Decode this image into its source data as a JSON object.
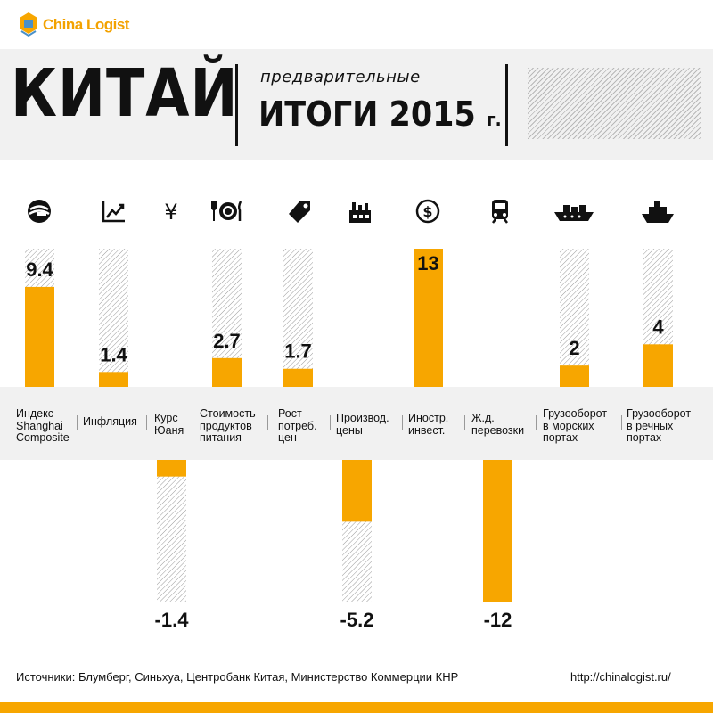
{
  "brand": {
    "name": "China Logist",
    "color": "#f7a600"
  },
  "header": {
    "title": "КИТАЙ",
    "subtitle": "предварительные",
    "title2": "ИТОГИ 2015",
    "title2_suffix": "г."
  },
  "chart_data": {
    "type": "bar",
    "categories": [
      {
        "lines": [
          "Индекс",
          "Shanghai",
          "Composite"
        ],
        "icon": "shanghai-exchange-icon"
      },
      {
        "lines": [
          "Инфляция"
        ],
        "icon": "chart-trend-icon"
      },
      {
        "lines": [
          "Курс",
          "Юаня"
        ],
        "icon": "yuan-icon"
      },
      {
        "lines": [
          "Стоимость",
          "продуктов",
          "питания"
        ],
        "icon": "food-plate-icon"
      },
      {
        "lines": [
          "Рост",
          "потреб.",
          "цен"
        ],
        "icon": "price-tag-icon"
      },
      {
        "lines": [
          "Производ.",
          "цены"
        ],
        "icon": "factory-icon"
      },
      {
        "lines": [
          "Иностр.",
          "инвест."
        ],
        "icon": "dollar-coin-icon"
      },
      {
        "lines": [
          "Ж.д.",
          "перевозки"
        ],
        "icon": "train-icon"
      },
      {
        "lines": [
          "Грузооборот",
          "в морских",
          "портах"
        ],
        "icon": "cargo-ship-icon"
      },
      {
        "lines": [
          "Грузооборот",
          "в речных",
          "портах"
        ],
        "icon": "river-boat-icon"
      }
    ],
    "values": [
      9.4,
      1.4,
      -1.4,
      2.7,
      1.7,
      -5.2,
      13,
      -12,
      2,
      4
    ],
    "labels": [
      "9.4",
      "1.4",
      "-1.4",
      "2.7",
      "1.7",
      "-5.2",
      "13",
      "-12",
      "2",
      "4"
    ],
    "bar_color": "#f7a600",
    "hatched_background": true
  },
  "footer": {
    "sources": "Источники: Блумберг, Синьхуа, Центробанк Китая, Министерство Коммерции КНР",
    "url": "http://chinalogist.ru/"
  }
}
